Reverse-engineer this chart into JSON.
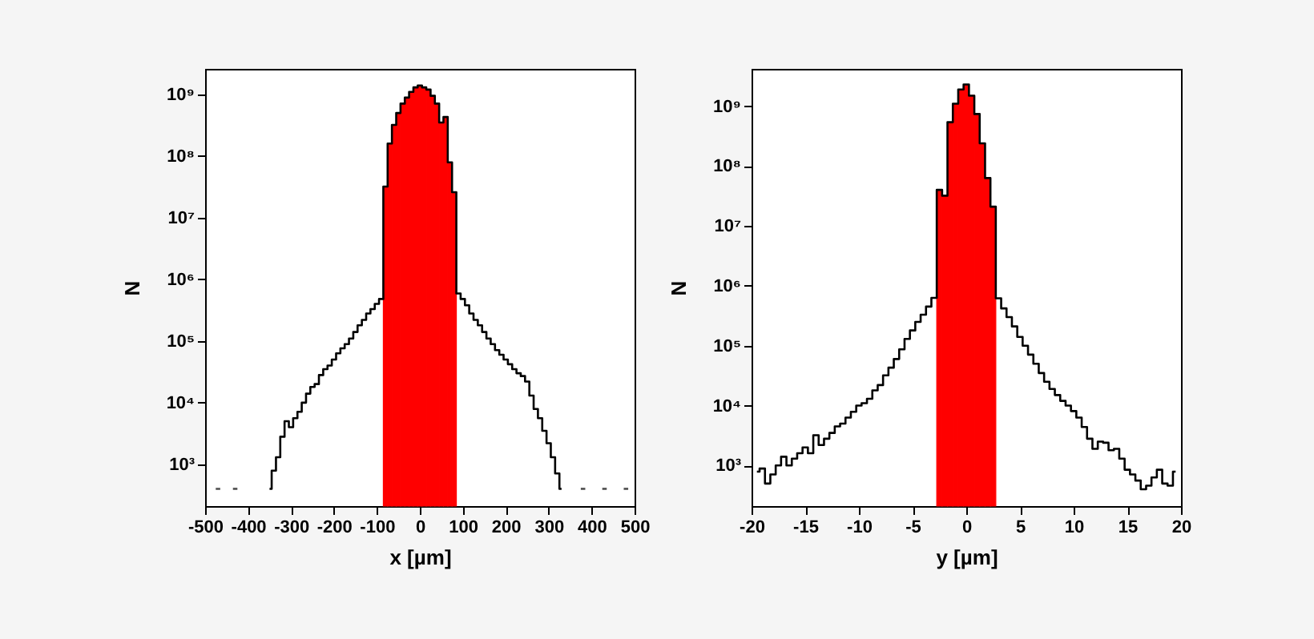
{
  "chart_data": [
    {
      "type": "step",
      "xlabel": "x [µm]",
      "ylabel": "N",
      "log": "y",
      "grid": false,
      "xlim": [
        -500,
        500
      ],
      "xticks": [
        -500,
        -400,
        -300,
        -200,
        -100,
        0,
        100,
        200,
        300,
        400,
        500
      ],
      "ylim": [
        210,
        2600000000.0
      ],
      "yticks": [
        {
          "value": 1000,
          "label": "10³"
        },
        {
          "value": 10000,
          "label": "10⁴"
        },
        {
          "value": 100000,
          "label": "10⁵"
        },
        {
          "value": 1000000,
          "label": "10⁶"
        },
        {
          "value": 10000000,
          "label": "10⁷"
        },
        {
          "value": 100000000,
          "label": "10⁸"
        },
        {
          "value": 1000000000,
          "label": "10⁹"
        }
      ],
      "series": [
        {
          "type": "bar",
          "color": "#ff0000",
          "x": [
            -80,
            -70,
            -60,
            -50,
            -40,
            -30,
            -20,
            -10,
            0,
            10,
            20,
            30,
            40,
            50,
            60,
            70,
            80
          ],
          "values": [
            32000000.0,
            160000000.0,
            320000000.0,
            500000000.0,
            710000000.0,
            890000000.0,
            1100000000.0,
            1300000000.0,
            1400000000.0,
            1300000000.0,
            1200000000.0,
            950000000.0,
            710000000.0,
            350000000.0,
            430000000.0,
            79000000.0,
            26000000.0
          ]
        },
        {
          "color": "#000000",
          "x": [
            -470,
            -460,
            -450,
            -440,
            -430,
            -420,
            -410,
            -400,
            -390,
            -380,
            -370,
            -360,
            -350,
            -340,
            -330,
            -320,
            -310,
            -300,
            -290,
            -280,
            -270,
            -260,
            -250,
            -240,
            -230,
            -220,
            -210,
            -200,
            -190,
            -180,
            -170,
            -160,
            -150,
            -140,
            -130,
            -120,
            -110,
            -100,
            -90,
            -80,
            -70,
            -60,
            -50,
            -40,
            -30,
            -20,
            -10,
            0,
            10,
            20,
            30,
            40,
            50,
            60,
            70,
            80,
            90,
            100,
            110,
            120,
            130,
            140,
            150,
            160,
            170,
            180,
            190,
            200,
            210,
            220,
            230,
            240,
            250,
            260,
            270,
            280,
            290,
            300,
            310,
            320,
            330,
            340,
            350,
            360,
            370,
            380,
            390,
            400,
            410,
            420,
            430,
            440,
            450,
            460,
            470,
            480
          ],
          "values": [
            400,
            null,
            null,
            null,
            400,
            null,
            null,
            null,
            null,
            null,
            null,
            null,
            400,
            790,
            1300,
            2800,
            5000,
            4000,
            5600,
            7100,
            10000,
            14000,
            18000,
            20000,
            28000,
            35000,
            40000,
            50000,
            63000,
            76000,
            89000,
            110000,
            140000,
            180000,
            220000,
            280000,
            330000,
            400000,
            480000,
            32000000.0,
            160000000.0,
            320000000.0,
            500000000.0,
            710000000.0,
            890000000.0,
            1100000000.0,
            1300000000.0,
            1400000000.0,
            1300000000.0,
            1200000000.0,
            950000000.0,
            710000000.0,
            350000000.0,
            430000000.0,
            79000000.0,
            26000000.0,
            590000,
            480000,
            380000,
            280000,
            220000,
            180000,
            140000,
            110000,
            89000,
            71000,
            60000,
            50000,
            42000,
            35000,
            30000,
            27000,
            22000,
            13000,
            7900,
            5600,
            3500,
            2200,
            1300,
            710,
            400,
            null,
            null,
            null,
            null,
            400,
            null,
            null,
            null,
            null,
            400,
            null,
            null,
            null,
            null,
            400
          ]
        }
      ]
    },
    {
      "type": "step",
      "xlabel": "y [µm]",
      "ylabel": "N",
      "log": "y",
      "grid": false,
      "xlim": [
        -20,
        20
      ],
      "xticks": [
        -20,
        -15,
        -10,
        -5,
        0,
        5,
        10,
        15,
        20
      ],
      "ylim": [
        210,
        4200000000.0
      ],
      "yticks": [
        {
          "value": 1000,
          "label": "10³"
        },
        {
          "value": 10000,
          "label": "10⁴"
        },
        {
          "value": 100000,
          "label": "10⁵"
        },
        {
          "value": 1000000,
          "label": "10⁶"
        },
        {
          "value": 10000000,
          "label": "10⁷"
        },
        {
          "value": 100000000,
          "label": "10⁸"
        },
        {
          "value": 1000000000,
          "label": "10⁹"
        }
      ],
      "series": [
        {
          "type": "bar",
          "color": "#ff0000",
          "x": [
            -2.5,
            -2,
            -1.5,
            -1,
            -0.5,
            0,
            0.5,
            1,
            1.5,
            2,
            2.5
          ],
          "values": [
            40000000.0,
            32000000.0,
            540000000.0,
            1100000000.0,
            1900000000.0,
            2300000000.0,
            1500000000.0,
            740000000.0,
            240000000.0,
            63000000.0,
            21000000.0
          ]
        },
        {
          "color": "#000000",
          "x": [
            -19.5,
            -19,
            -18.5,
            -18,
            -17.5,
            -17,
            -16.5,
            -16,
            -15.5,
            -15,
            -14.5,
            -14,
            -13.5,
            -13,
            -12.5,
            -12,
            -11.5,
            -11,
            -10.5,
            -10,
            -9.5,
            -9,
            -8.5,
            -8,
            -7.5,
            -7,
            -6.5,
            -6,
            -5.5,
            -5,
            -4.5,
            -4,
            -3.5,
            -3,
            -2.5,
            -2,
            -1.5,
            -1,
            -0.5,
            0,
            0.5,
            1,
            1.5,
            2,
            2.5,
            3,
            3.5,
            4,
            4.5,
            5,
            5.5,
            6,
            6.5,
            7,
            7.5,
            8,
            8.5,
            9,
            9.5,
            10,
            10.5,
            11,
            11.5,
            12,
            12.5,
            13,
            13.5,
            14,
            14.5,
            15,
            15.5,
            16,
            16.5,
            17,
            17.5,
            18,
            18.5,
            19,
            19.5
          ],
          "values": [
            790,
            890,
            500,
            710,
            1000,
            1400,
            1000,
            1300,
            1600,
            2000,
            1600,
            3200,
            2200,
            2800,
            3500,
            4500,
            5000,
            6300,
            7900,
            10000,
            11000,
            13000,
            18000,
            22000,
            32000,
            43000,
            60000,
            87000,
            130000,
            180000,
            250000,
            330000,
            450000,
            630000,
            40000000.0,
            32000000.0,
            540000000.0,
            1100000000.0,
            1900000000.0,
            2300000000.0,
            1500000000.0,
            740000000.0,
            240000000.0,
            63000000.0,
            21000000.0,
            620000,
            420000,
            300000,
            210000,
            140000,
            100000,
            71000,
            50000,
            35000,
            25000,
            19000,
            15000,
            12000,
            10000,
            8100,
            6300,
            4400,
            2800,
            1900,
            2500,
            2400,
            1800,
            1900,
            1300,
            850,
            710,
            560,
            400,
            460,
            630,
            850,
            500,
            460,
            790
          ]
        }
      ]
    }
  ]
}
